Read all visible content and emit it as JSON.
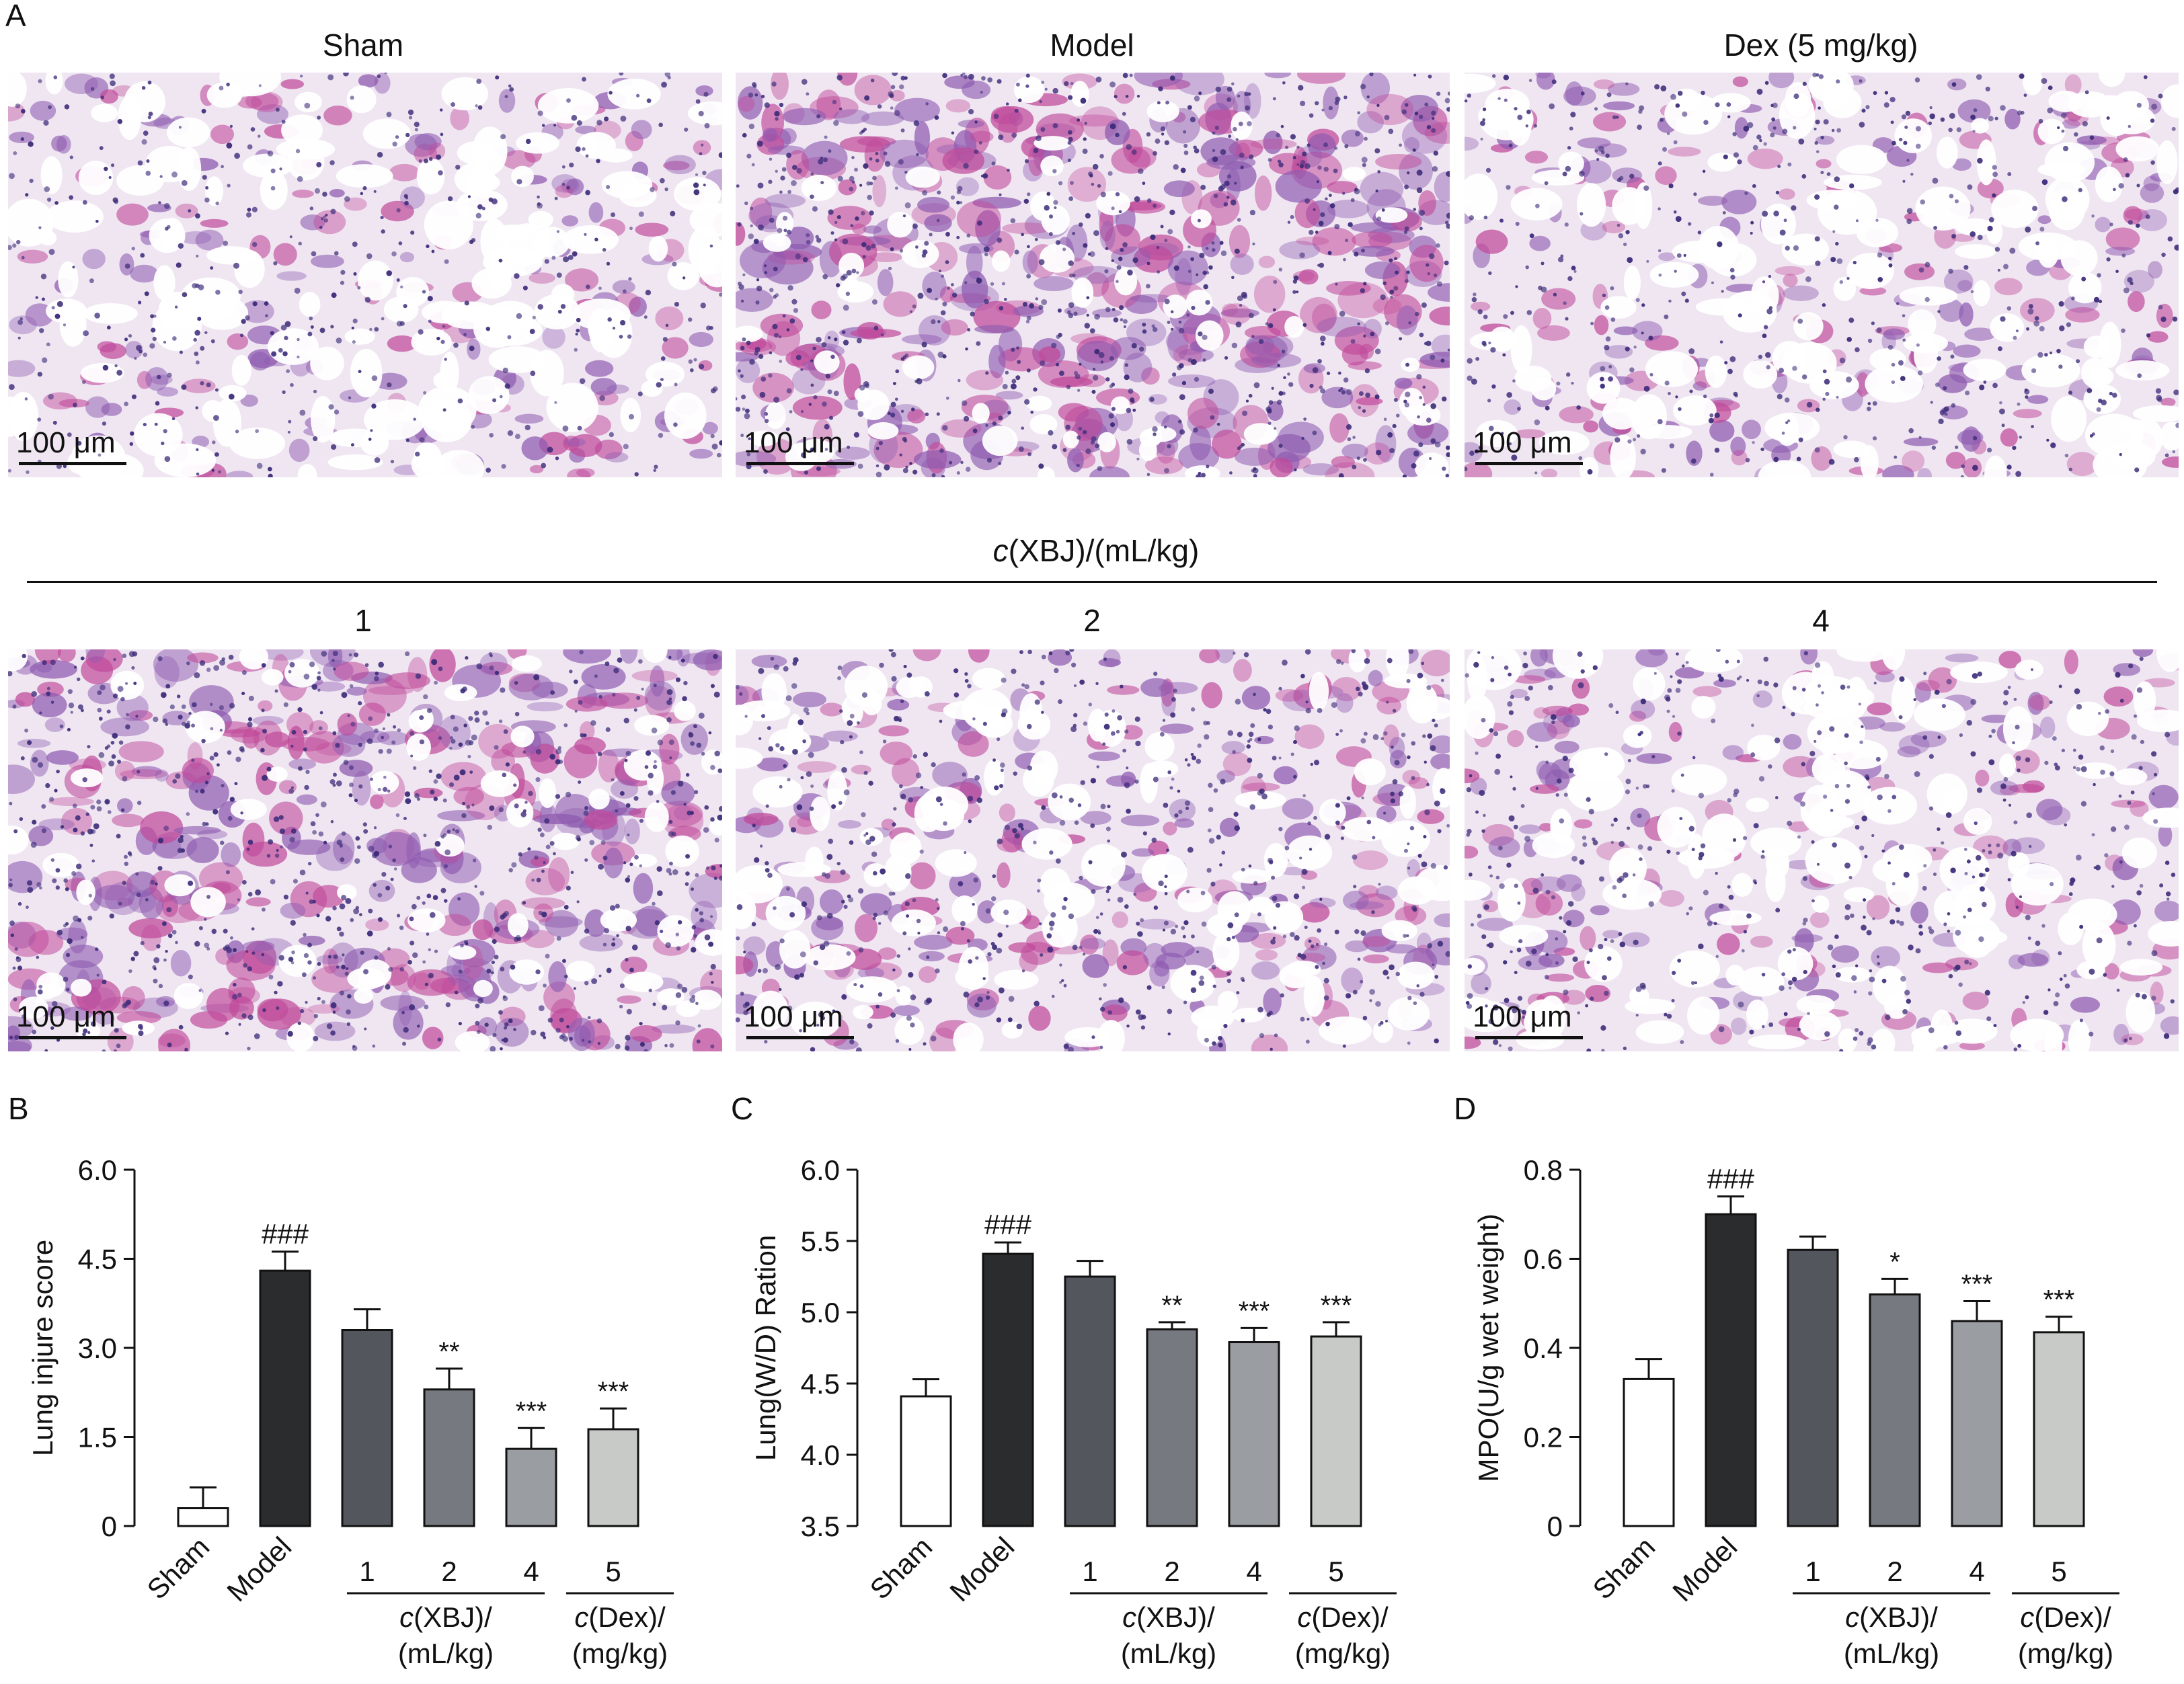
{
  "panel_a": {
    "letter": "A",
    "top_titles": [
      "Sham",
      "Model",
      "Dex (5 mg/kg)"
    ],
    "group_label": "c(XBJ)/(mL/kg)",
    "group_label_italic": "c",
    "group_label_rest": "(XBJ)/(mL/kg)",
    "bottom_titles": [
      "1",
      "2",
      "4"
    ],
    "scale_label": "100 μm"
  },
  "colors": {
    "tissue_bg": "#efe6f2",
    "stain_pink": "#c04a9a",
    "stain_purple": "#5b3a8c",
    "nuclei": "#3b2a78",
    "bars": [
      "#ffffff",
      "#2b2c2e",
      "#53565d",
      "#76797f",
      "#9a9da2",
      "#c8cac8"
    ]
  },
  "chart_data": [
    {
      "type": "bar",
      "letter": "B",
      "ylabel": "Lung injure score",
      "yticks": [
        "0",
        "1.5",
        "3.0",
        "4.5",
        "6.0"
      ],
      "ylim": [
        0,
        6.0
      ],
      "categories": [
        "Sham",
        "Model",
        "1",
        "2",
        "4",
        "5"
      ],
      "values": [
        0.3,
        4.3,
        3.3,
        2.3,
        1.3,
        1.63
      ],
      "errors": [
        0.35,
        0.32,
        0.35,
        0.35,
        0.35,
        0.35
      ],
      "annotations": [
        "",
        "###",
        "",
        "**",
        "***",
        "***"
      ],
      "groups": [
        {
          "label_italic": "c",
          "label_rest": "(XBJ)/",
          "label2": "(mL/kg)",
          "from": 2,
          "to": 4
        },
        {
          "label_italic": "c",
          "label_rest": "(Dex)/",
          "label2": "(mg/kg)",
          "from": 5,
          "to": 5
        }
      ]
    },
    {
      "type": "bar",
      "letter": "C",
      "ylabel": "Lung(W/D) Ration",
      "yticks": [
        "3.5",
        "4.0",
        "4.5",
        "5.0",
        "5.5",
        "6.0"
      ],
      "ylim": [
        3.5,
        6.0
      ],
      "categories": [
        "Sham",
        "Model",
        "1",
        "2",
        "4",
        "5"
      ],
      "values": [
        4.41,
        5.41,
        5.25,
        4.88,
        4.79,
        4.83
      ],
      "errors": [
        0.12,
        0.08,
        0.11,
        0.05,
        0.1,
        0.1
      ],
      "annotations": [
        "",
        "###",
        "",
        "**",
        "***",
        "***"
      ],
      "groups": [
        {
          "label_italic": "c",
          "label_rest": "(XBJ)/",
          "label2": "(mL/kg)",
          "from": 2,
          "to": 4
        },
        {
          "label_italic": "c",
          "label_rest": "(Dex)/",
          "label2": "(mg/kg)",
          "from": 5,
          "to": 5
        }
      ]
    },
    {
      "type": "bar",
      "letter": "D",
      "ylabel": "MPO(U/g wet weight)",
      "yticks": [
        "0",
        "0.2",
        "0.4",
        "0.6",
        "0.8"
      ],
      "ylim": [
        0,
        0.8
      ],
      "categories": [
        "Sham",
        "Model",
        "1",
        "2",
        "4",
        "5"
      ],
      "values": [
        0.33,
        0.7,
        0.62,
        0.52,
        0.46,
        0.435
      ],
      "errors": [
        0.045,
        0.04,
        0.03,
        0.035,
        0.045,
        0.035
      ],
      "annotations": [
        "",
        "###",
        "",
        "*",
        "***",
        "***"
      ],
      "groups": [
        {
          "label_italic": "c",
          "label_rest": "(XBJ)/",
          "label2": "(mL/kg)",
          "from": 2,
          "to": 4
        },
        {
          "label_italic": "c",
          "label_rest": "(Dex)/",
          "label2": "(mg/kg)",
          "from": 5,
          "to": 5
        }
      ]
    }
  ]
}
